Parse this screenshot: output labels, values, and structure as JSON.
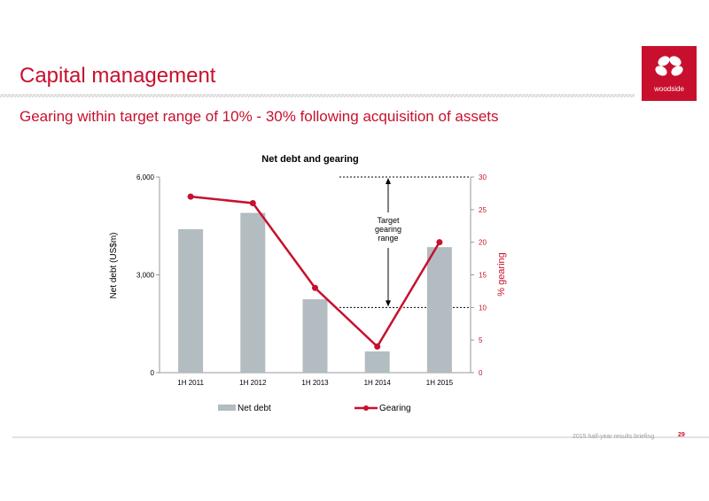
{
  "slide": {
    "title": "Capital management",
    "subtitle": "Gearing within target range of 10% - 30% following acquisition of assets",
    "logo_text": "woodside",
    "footer_text": "2015 half-year results briefing",
    "page_number": "29"
  },
  "chart_data": {
    "type": "bar+line",
    "title": "Net debt and gearing",
    "categories": [
      "1H 2011",
      "1H 2012",
      "1H 2013",
      "1H 2014",
      "1H 2015"
    ],
    "series": [
      {
        "name": "Net debt",
        "type": "bar",
        "axis": "left",
        "values": [
          4400,
          4900,
          2250,
          650,
          3850
        ],
        "color": "#b2bcc1"
      },
      {
        "name": "Gearing",
        "type": "line",
        "axis": "right",
        "values": [
          27,
          26,
          13,
          4,
          20
        ],
        "color": "#c8102e"
      }
    ],
    "ylabel": "Net debt (US$m)",
    "ylim": [
      0,
      6000
    ],
    "yticks": [
      "0",
      "3,000",
      "6,000"
    ],
    "y2label": "% gearing",
    "y2lim": [
      0,
      30
    ],
    "y2ticks": [
      "0",
      "5",
      "10",
      "15",
      "20",
      "25",
      "30"
    ],
    "annotation": {
      "text_lines": [
        "Target",
        "gearing",
        "range"
      ],
      "low": 10,
      "high": 30
    },
    "legend_position": "bottom",
    "grid": false
  }
}
